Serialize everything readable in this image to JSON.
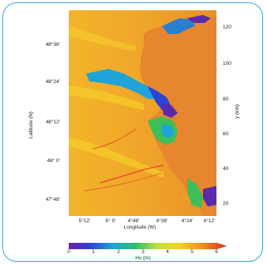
{
  "map": {
    "axes": {
      "left_label": "Latitude (N)",
      "right_label": "y (km)",
      "bottom_label": "Longitude (W)"
    },
    "lat_ticks": [
      "48°36'",
      "48°24'",
      "48°12'",
      "48° 0'",
      "47°48'"
    ],
    "y_ticks": [
      "120",
      "100",
      "80",
      "60",
      "40",
      "20"
    ],
    "lon_ticks": [
      "5°12'",
      "5° 0'",
      "4°48'",
      "4°36'",
      "4°24'",
      "4°12'"
    ],
    "colorbar": {
      "label": "Hs (m)",
      "ticks": [
        "0",
        "1",
        "2",
        "3",
        "4",
        "5",
        "6"
      ],
      "colors": [
        "#6a1fa8",
        "#2a44d6",
        "#1fa3d8",
        "#2bbf6a",
        "#bde23a",
        "#f5d21e",
        "#f08a1c",
        "#e0301e"
      ]
    },
    "colors": {
      "land": "#e6862e",
      "sea_mid": "#f0a52a",
      "sea_high": "#f2c31f",
      "shelter_green": "#3dbf5a",
      "shelter_blue": "#2a7fd0",
      "shelter_purple": "#5a2aa8",
      "frame": "#3aa6d8"
    }
  }
}
